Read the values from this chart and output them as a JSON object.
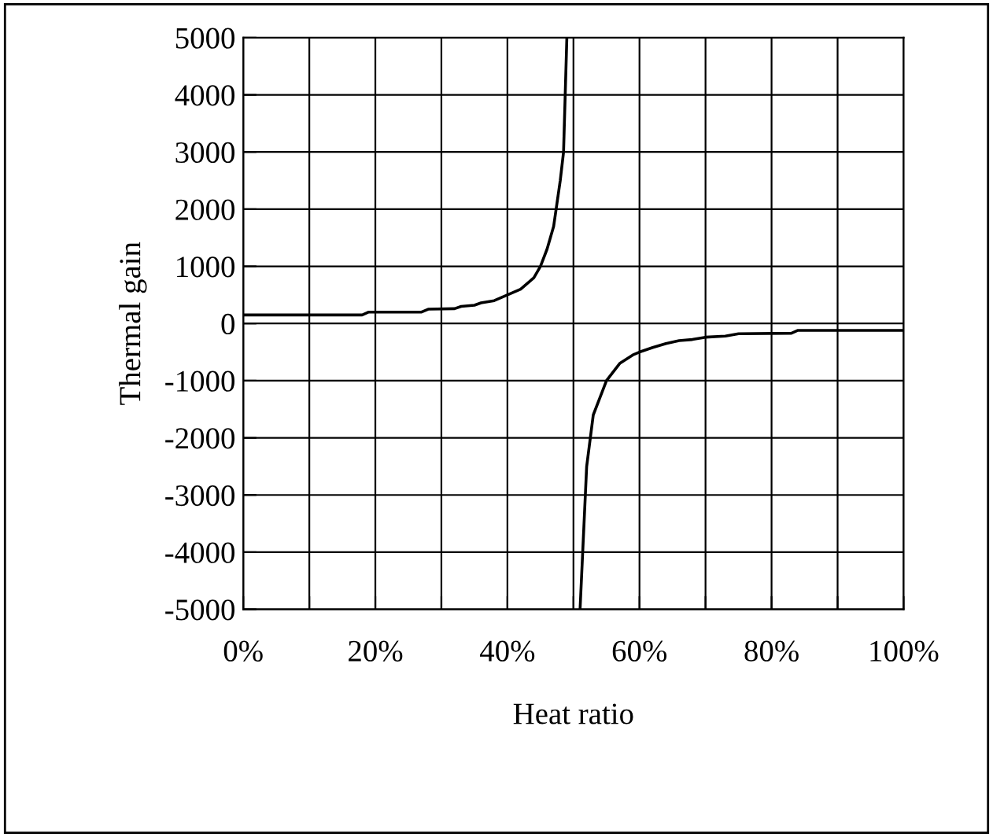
{
  "chart_data": {
    "type": "line",
    "xlabel": "Heat ratio",
    "ylabel": "Thermal gain",
    "series": [
      {
        "color": "#000000",
        "x": [
          0,
          0.1,
          0.18,
          0.19,
          0.27,
          0.28,
          0.32,
          0.33,
          0.35,
          0.36,
          0.38,
          0.4,
          0.42,
          0.44,
          0.45,
          0.46,
          0.47,
          0.48,
          0.485,
          0.49,
          0.5,
          0.51,
          0.52,
          0.53,
          0.55,
          0.57,
          0.59,
          0.6,
          0.62,
          0.64,
          0.66,
          0.68,
          0.7,
          0.73,
          0.75,
          0.83,
          0.84,
          1.0
        ],
        "values": [
          150,
          150,
          150,
          200,
          200,
          250,
          260,
          300,
          320,
          360,
          400,
          500,
          600,
          800,
          1000,
          1300,
          1700,
          2500,
          3000,
          5000,
          null,
          -5000,
          -2500,
          -1600,
          -1000,
          -700,
          -550,
          -500,
          -420,
          -350,
          -300,
          -280,
          -240,
          -220,
          -180,
          -170,
          -120,
          -120
        ]
      }
    ],
    "xlim": [
      0,
      1
    ],
    "ylim": [
      -5000,
      5000
    ],
    "xticks": [
      {
        "value": 0,
        "label": "0%"
      },
      {
        "value": 0.1,
        "label": null
      },
      {
        "value": 0.2,
        "label": "20%"
      },
      {
        "value": 0.3,
        "label": null
      },
      {
        "value": 0.4,
        "label": "40%"
      },
      {
        "value": 0.5,
        "label": null
      },
      {
        "value": 0.6,
        "label": "60%"
      },
      {
        "value": 0.7,
        "label": null
      },
      {
        "value": 0.8,
        "label": "80%"
      },
      {
        "value": 0.9,
        "label": null
      },
      {
        "value": 1,
        "label": "100%"
      }
    ],
    "yticks": [
      -5000,
      -4000,
      -3000,
      -2000,
      -1000,
      0,
      1000,
      2000,
      3000,
      4000,
      5000
    ],
    "grid": true,
    "marker": "none",
    "line_style": "solid"
  }
}
